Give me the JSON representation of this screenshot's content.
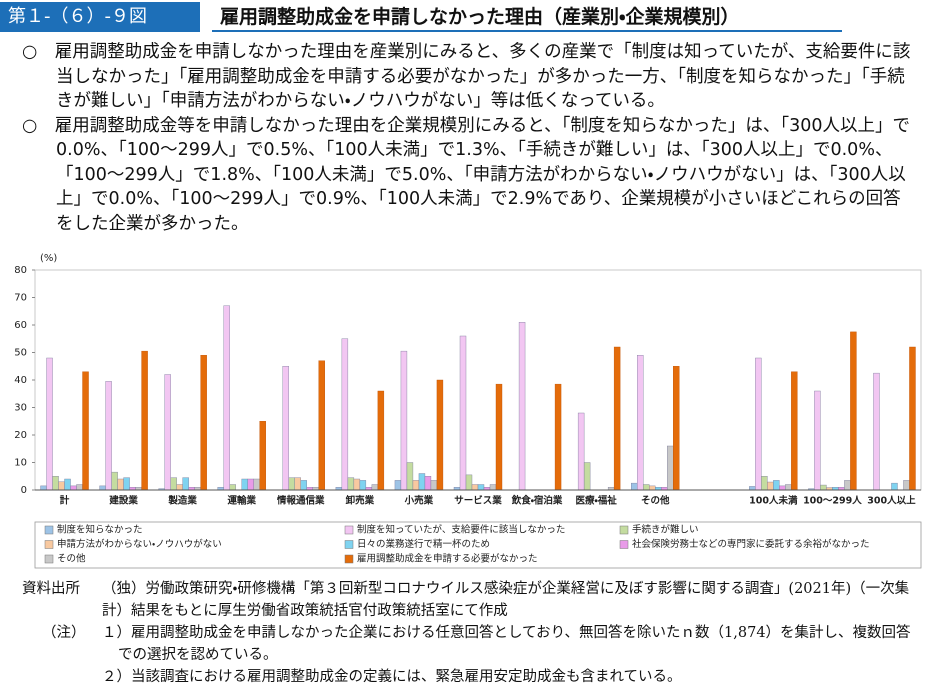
{
  "header": {
    "figure_no": "第１-（６）-９図",
    "title": "雇用調整助成金を申請しなかった理由（産業別・企業規模別）"
  },
  "text": {
    "paragraphs": [
      "○　雇用調整助成金を申請しなかった理由を産業別にみると、多くの産業で「制度は知っていたが、支給要件に該当しなかった」「雇用調整助成金を申請する必要がなかった」が多かった一方、「制度を知らなかった」「手続きが難しい」「申請方法がわからない・ノウハウがない」等は低くなっている。",
      "○　雇用調整助成金等を申請しなかった理由を企業規模別にみると、「制度を知らなかった」は、「300人以上」で0.0%、「100～299人」で0.5%、「100人未満」で1.3%、「手続きが難しい」は、「300人以上」で0.0%、「100～299人」で1.8%、「100人未満」で5.0%、「申請方法がわからない・ノウハウがない」は、「300人以上」で0.0%、「100～299人」で0.9%、「100人未満」で2.9%であり、企業規模が小さいほどこれらの回答をした企業が多かった。"
    ]
  },
  "chart_data": {
    "type": "bar",
    "y_unit": "(%)",
    "categories": [
      "計",
      "建設業",
      "製造業",
      "運輸業",
      "情報通信業",
      "卸売業",
      "小売業",
      "サービス業",
      "飲食・宿泊業",
      "医療・福祉",
      "その他",
      null,
      "100人未満",
      "100～299人",
      "300人以上"
    ],
    "ylim": [
      0,
      80
    ],
    "yticks": [
      0,
      10,
      20,
      30,
      40,
      50,
      60,
      70,
      80
    ],
    "grid": false,
    "series": [
      {
        "name": "制度を知らなかった",
        "color": "#9dc3e6",
        "values": [
          1.5,
          1.5,
          0.5,
          1,
          0,
          1,
          3.5,
          1,
          0,
          0,
          2.5,
          null,
          1.3,
          0.5,
          0.0
        ]
      },
      {
        "name": "制度を知っていたが、支給要件に該当しなかった",
        "color": "#f2c6f2",
        "values": [
          48,
          39.5,
          42,
          67,
          45,
          55,
          50.5,
          56,
          61,
          28,
          49,
          null,
          48,
          36,
          42.5
        ]
      },
      {
        "name": "手続きが難しい",
        "color": "#c4dca0",
        "values": [
          5,
          6.5,
          4.5,
          2,
          4.5,
          4.5,
          10,
          5.5,
          0,
          10,
          2,
          null,
          5.0,
          1.8,
          0.0
        ]
      },
      {
        "name": "申請方法がわからない・ノウハウがない",
        "color": "#f8c9a0",
        "values": [
          3,
          4,
          2,
          0,
          4.5,
          4,
          3.5,
          2,
          0,
          0,
          1.5,
          null,
          2.9,
          0.9,
          0.0
        ]
      },
      {
        "name": "日々の業務遂行で精一杯のため",
        "color": "#7fd3f0",
        "values": [
          4,
          4.5,
          4.5,
          4,
          3.5,
          3.5,
          6,
          2,
          0,
          0,
          1,
          null,
          3.5,
          1,
          2.5
        ]
      },
      {
        "name": "社会保険労務士などの専門家に委託する余裕がなかった",
        "color": "#e89be8",
        "values": [
          1.5,
          1,
          1,
          4,
          1,
          1,
          5,
          1,
          0,
          0,
          1,
          null,
          1.5,
          1,
          0
        ]
      },
      {
        "name": "その他",
        "color": "#c8c8c8",
        "values": [
          2,
          1,
          1,
          4,
          1,
          2,
          3.5,
          2,
          0,
          1,
          16,
          null,
          2,
          3.5,
          3.5
        ]
      },
      {
        "name": "雇用調整助成金を申請する必要がなかった",
        "color": "#e46c0a",
        "values": [
          43,
          50.5,
          49,
          25,
          47,
          36,
          40,
          38.5,
          38.5,
          52,
          45,
          null,
          43,
          57.5,
          52
        ]
      }
    ]
  },
  "notes": {
    "source_label": "資料出所",
    "source": "（独）労働政策研究・研修機構「第３回新型コロナウイルス感染症が企業経営に及ぼす影響に関する調査」(2021年)（一次集計）結果をもとに厚生労働省政策統括官付政策統括室にて作成",
    "note_label": "（注）",
    "items": [
      "１）雇用調整助成金を申請しなかった企業における任意回答としており、無回答を除いたｎ数（1,874）を集計し、複数回答での選択を認めている。",
      "２）当該調査における雇用調整助成金の定義には、緊急雇用安定助成金も含まれている。"
    ]
  }
}
